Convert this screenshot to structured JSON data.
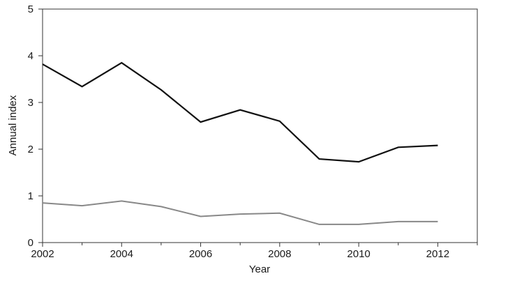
{
  "chart_data": {
    "type": "line",
    "title": "",
    "xlabel": "Year",
    "ylabel": "Annual index",
    "xlim": [
      2002,
      2013
    ],
    "ylim": [
      0,
      5
    ],
    "x_ticks": [
      2002,
      2004,
      2006,
      2008,
      2010,
      2012
    ],
    "y_ticks": [
      0,
      1,
      2,
      3,
      4,
      5
    ],
    "x_minor_ticks": [
      2003,
      2005,
      2007,
      2009,
      2011,
      2013
    ],
    "grid": false,
    "legend": "none",
    "x": [
      2002,
      2003,
      2004,
      2005,
      2006,
      2007,
      2008,
      2009,
      2010,
      2011,
      2012
    ],
    "series": [
      {
        "color": "#111111",
        "values": [
          3.82,
          3.34,
          3.85,
          3.27,
          2.58,
          2.84,
          2.6,
          1.79,
          1.73,
          2.04,
          2.08
        ]
      },
      {
        "color": "#888888",
        "values": [
          0.85,
          0.79,
          0.89,
          0.77,
          0.56,
          0.61,
          0.63,
          0.39,
          0.39,
          0.45,
          0.45
        ]
      }
    ]
  }
}
